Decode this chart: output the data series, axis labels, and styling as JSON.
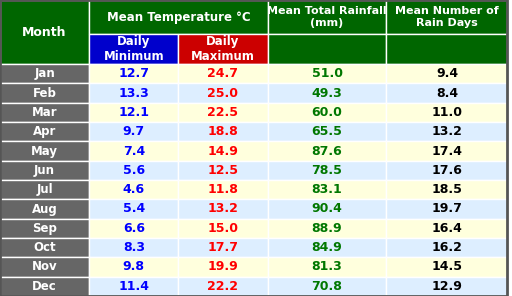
{
  "months": [
    "Jan",
    "Feb",
    "Mar",
    "Apr",
    "May",
    "Jun",
    "Jul",
    "Aug",
    "Sep",
    "Oct",
    "Nov",
    "Dec"
  ],
  "daily_min": [
    12.7,
    13.3,
    12.1,
    9.7,
    7.4,
    5.6,
    4.6,
    5.4,
    6.6,
    8.3,
    9.8,
    11.4
  ],
  "daily_max": [
    24.7,
    25.0,
    22.5,
    18.8,
    14.9,
    12.5,
    11.8,
    13.2,
    15.0,
    17.7,
    19.9,
    22.2
  ],
  "rainfall": [
    51.0,
    49.3,
    60.0,
    65.5,
    87.6,
    78.5,
    83.1,
    90.4,
    88.9,
    84.9,
    81.3,
    70.8
  ],
  "rain_days": [
    9.4,
    8.4,
    11.0,
    13.2,
    17.4,
    17.6,
    18.5,
    19.7,
    16.4,
    16.2,
    14.5,
    12.9
  ],
  "header_bg": "#006600",
  "header_text": "#ffffff",
  "min_col_bg": "#0000cc",
  "max_col_bg": "#cc0000",
  "subheader_text": "#ffffff",
  "month_col_bg": "#666666",
  "month_text": "#ffffff",
  "row_bg_odd": "#ffffdd",
  "row_bg_even": "#ddeeff",
  "min_text_color": "#0000ff",
  "max_text_color": "#ff0000",
  "rain_text_color": "#007700",
  "days_text_color": "#000000",
  "border_color": "#ffffff",
  "title_temp": "Mean Temperature °C",
  "title_rainfall": "Mean Total Rainfall\n(mm)",
  "title_raindays": "Mean Number of\nRain Days",
  "col_month": "Month",
  "col_min": "Daily\nMinimum",
  "col_max": "Daily\nMaximum"
}
